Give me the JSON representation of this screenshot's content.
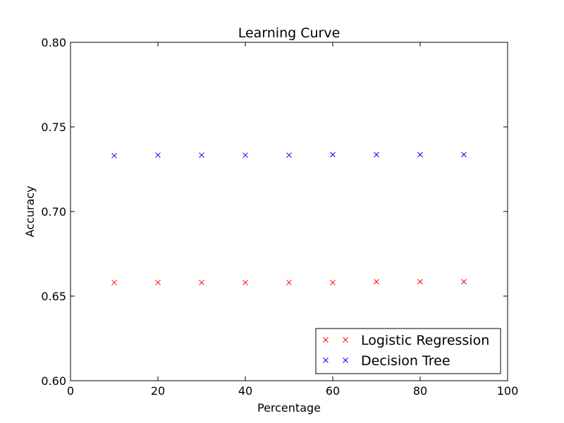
{
  "chart_data": {
    "type": "scatter",
    "title": "Learning Curve",
    "xlabel": "Percentage",
    "ylabel": "Accuracy",
    "xlim": [
      0,
      100
    ],
    "ylim": [
      0.6,
      0.8
    ],
    "xticks": [
      0,
      20,
      40,
      60,
      80,
      100
    ],
    "xtick_labels": [
      "0",
      "20",
      "40",
      "60",
      "80",
      "100"
    ],
    "yticks": [
      0.6,
      0.65,
      0.7,
      0.75,
      0.8
    ],
    "ytick_labels": [
      "0.60",
      "0.65",
      "0.70",
      "0.75",
      "0.80"
    ],
    "grid": false,
    "legend_position": "lower-right",
    "marker": "x",
    "series": [
      {
        "name": "Logistic Regression",
        "color": "#ff0000",
        "x": [
          10,
          20,
          30,
          40,
          50,
          60,
          70,
          80,
          90
        ],
        "y": [
          0.658,
          0.658,
          0.658,
          0.658,
          0.658,
          0.658,
          0.6585,
          0.6585,
          0.6585
        ]
      },
      {
        "name": "Decision Tree",
        "color": "#0000ff",
        "x": [
          10,
          20,
          30,
          40,
          50,
          60,
          70,
          80,
          90
        ],
        "y": [
          0.733,
          0.7333,
          0.7333,
          0.7333,
          0.7333,
          0.7336,
          0.7336,
          0.7336,
          0.7336
        ]
      }
    ]
  }
}
